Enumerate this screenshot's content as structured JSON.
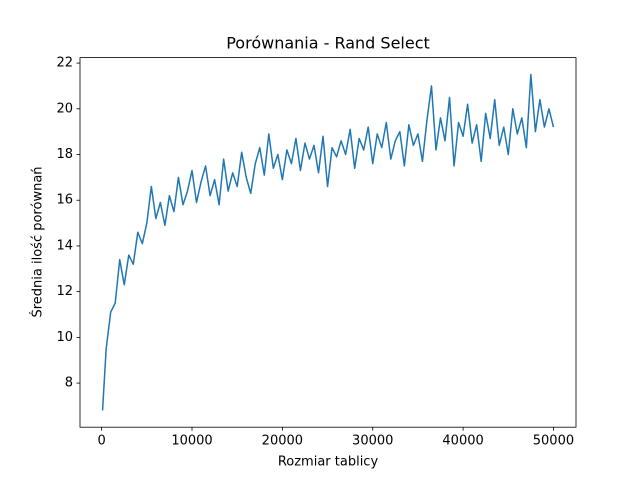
{
  "chart_data": {
    "type": "line",
    "title": "Porównania - Rand Select",
    "xlabel": "Rozmiar tablicy",
    "ylabel": "Średnia ilość porównań",
    "x": [
      100,
      500,
      1000,
      1500,
      2000,
      2500,
      3000,
      3500,
      4000,
      4500,
      5000,
      5500,
      6000,
      6500,
      7000,
      7500,
      8000,
      8500,
      9000,
      9500,
      10000,
      10500,
      11000,
      11500,
      12000,
      12500,
      13000,
      13500,
      14000,
      14500,
      15000,
      15500,
      16000,
      16500,
      17000,
      17500,
      18000,
      18500,
      19000,
      19500,
      20000,
      20500,
      21000,
      21500,
      22000,
      22500,
      23000,
      23500,
      24000,
      24500,
      25000,
      25500,
      26000,
      26500,
      27000,
      27500,
      28000,
      28500,
      29000,
      29500,
      30000,
      30500,
      31000,
      31500,
      32000,
      32500,
      33000,
      33500,
      34000,
      34500,
      35000,
      35500,
      36000,
      36500,
      37000,
      37500,
      38000,
      38500,
      39000,
      39500,
      40000,
      40500,
      41000,
      41500,
      42000,
      42500,
      43000,
      43500,
      44000,
      44500,
      45000,
      45500,
      46000,
      46500,
      47000,
      47500,
      48000,
      48500,
      49000,
      49500,
      50000
    ],
    "series": [
      {
        "name": "Porównania",
        "color": "#1f77b4",
        "values": [
          6.8,
          9.5,
          11.1,
          11.5,
          13.4,
          12.3,
          13.6,
          13.2,
          14.6,
          14.1,
          15.0,
          16.6,
          15.2,
          15.9,
          14.9,
          16.2,
          15.5,
          17.0,
          15.8,
          16.4,
          17.3,
          15.9,
          16.8,
          17.5,
          16.2,
          16.9,
          15.8,
          17.8,
          16.4,
          17.2,
          16.6,
          18.1,
          17.0,
          16.3,
          17.6,
          18.3,
          17.1,
          18.9,
          17.4,
          18.0,
          16.9,
          18.2,
          17.6,
          18.7,
          17.3,
          18.5,
          17.8,
          18.4,
          17.2,
          18.8,
          16.6,
          18.3,
          17.9,
          18.6,
          18.0,
          19.1,
          17.4,
          18.7,
          18.2,
          19.2,
          17.6,
          18.9,
          18.3,
          19.4,
          17.8,
          18.6,
          19.0,
          17.5,
          19.3,
          18.4,
          18.9,
          17.7,
          19.5,
          21.0,
          18.2,
          19.6,
          18.6,
          20.5,
          17.5,
          19.4,
          18.8,
          20.2,
          18.5,
          19.3,
          17.7,
          19.8,
          18.7,
          20.4,
          18.4,
          19.2,
          18.0,
          20.0,
          18.9,
          19.6,
          18.3,
          21.5,
          19.0,
          20.4,
          19.2,
          20.0,
          19.2
        ]
      }
    ],
    "xlim": [
      -2395,
      52495
    ],
    "ylim": [
      6.07,
      22.24
    ],
    "xticks": [
      0,
      10000,
      20000,
      30000,
      40000,
      50000
    ],
    "yticks": [
      8,
      10,
      12,
      14,
      16,
      18,
      20,
      22
    ],
    "grid": false
  }
}
